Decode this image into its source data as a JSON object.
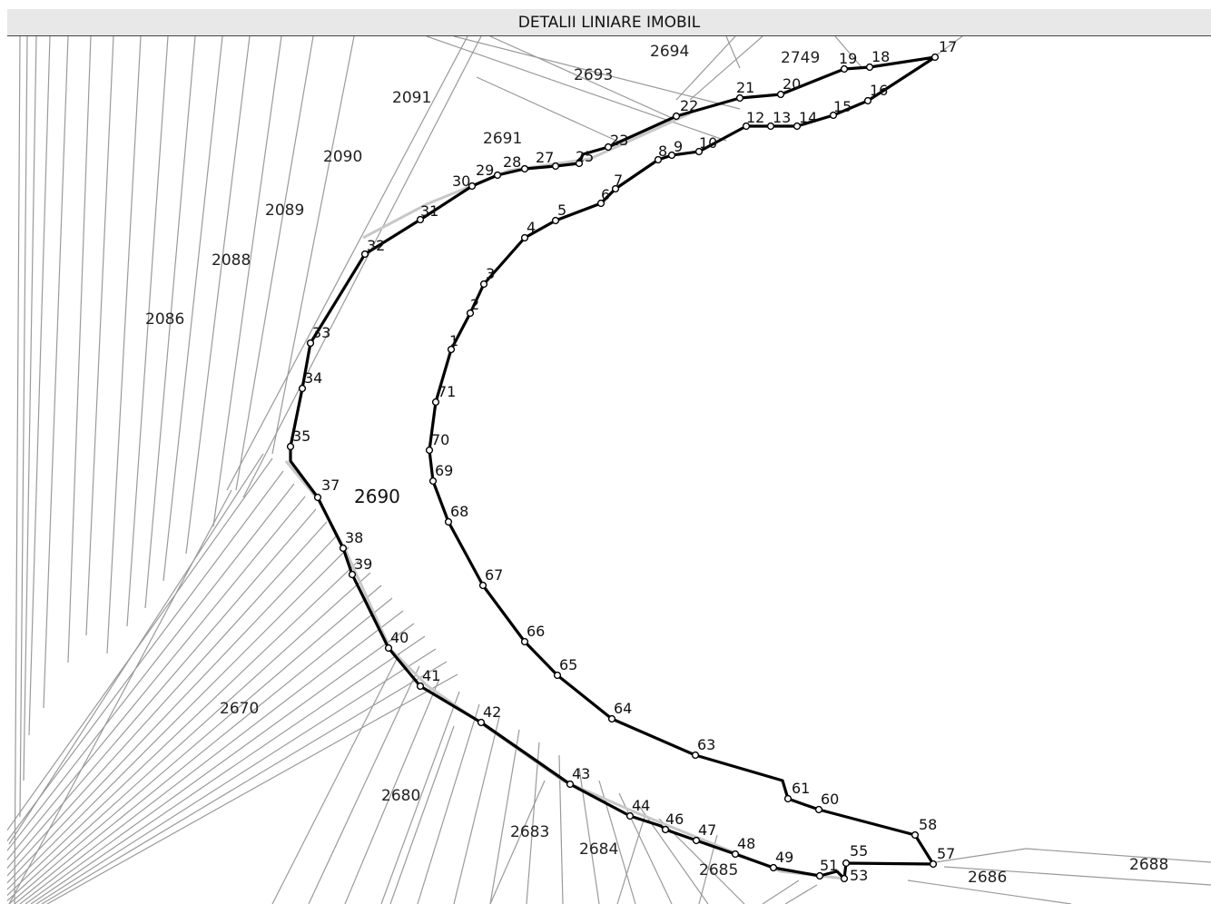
{
  "title": "DETALII LINIARE IMOBIL",
  "main_parcel": "2690",
  "parcels": [
    "2694",
    "2693",
    "2749",
    "2091",
    "2691",
    "2090",
    "2089",
    "2088",
    "2086",
    "2670",
    "2680",
    "2683",
    "2684",
    "2685",
    "2686",
    "2688"
  ],
  "vertices": [
    "1",
    "2",
    "3",
    "4",
    "5",
    "6",
    "7",
    "8",
    "9",
    "10",
    "12",
    "13",
    "14",
    "15",
    "16",
    "17",
    "18",
    "19",
    "20",
    "21",
    "22",
    "23",
    "25",
    "27",
    "28",
    "29",
    "30",
    "31",
    "32",
    "33",
    "34",
    "35",
    "37",
    "38",
    "39",
    "40",
    "41",
    "42",
    "43",
    "44",
    "46",
    "47",
    "48",
    "49",
    "51",
    "53",
    "55",
    "57",
    "58",
    "60",
    "61",
    "63",
    "64",
    "65",
    "66",
    "67",
    "68",
    "69",
    "70",
    "71"
  ],
  "colors": {
    "boundary": "#000000",
    "parcel_lines": "#999999",
    "header_bg": "#e8e8e8"
  }
}
